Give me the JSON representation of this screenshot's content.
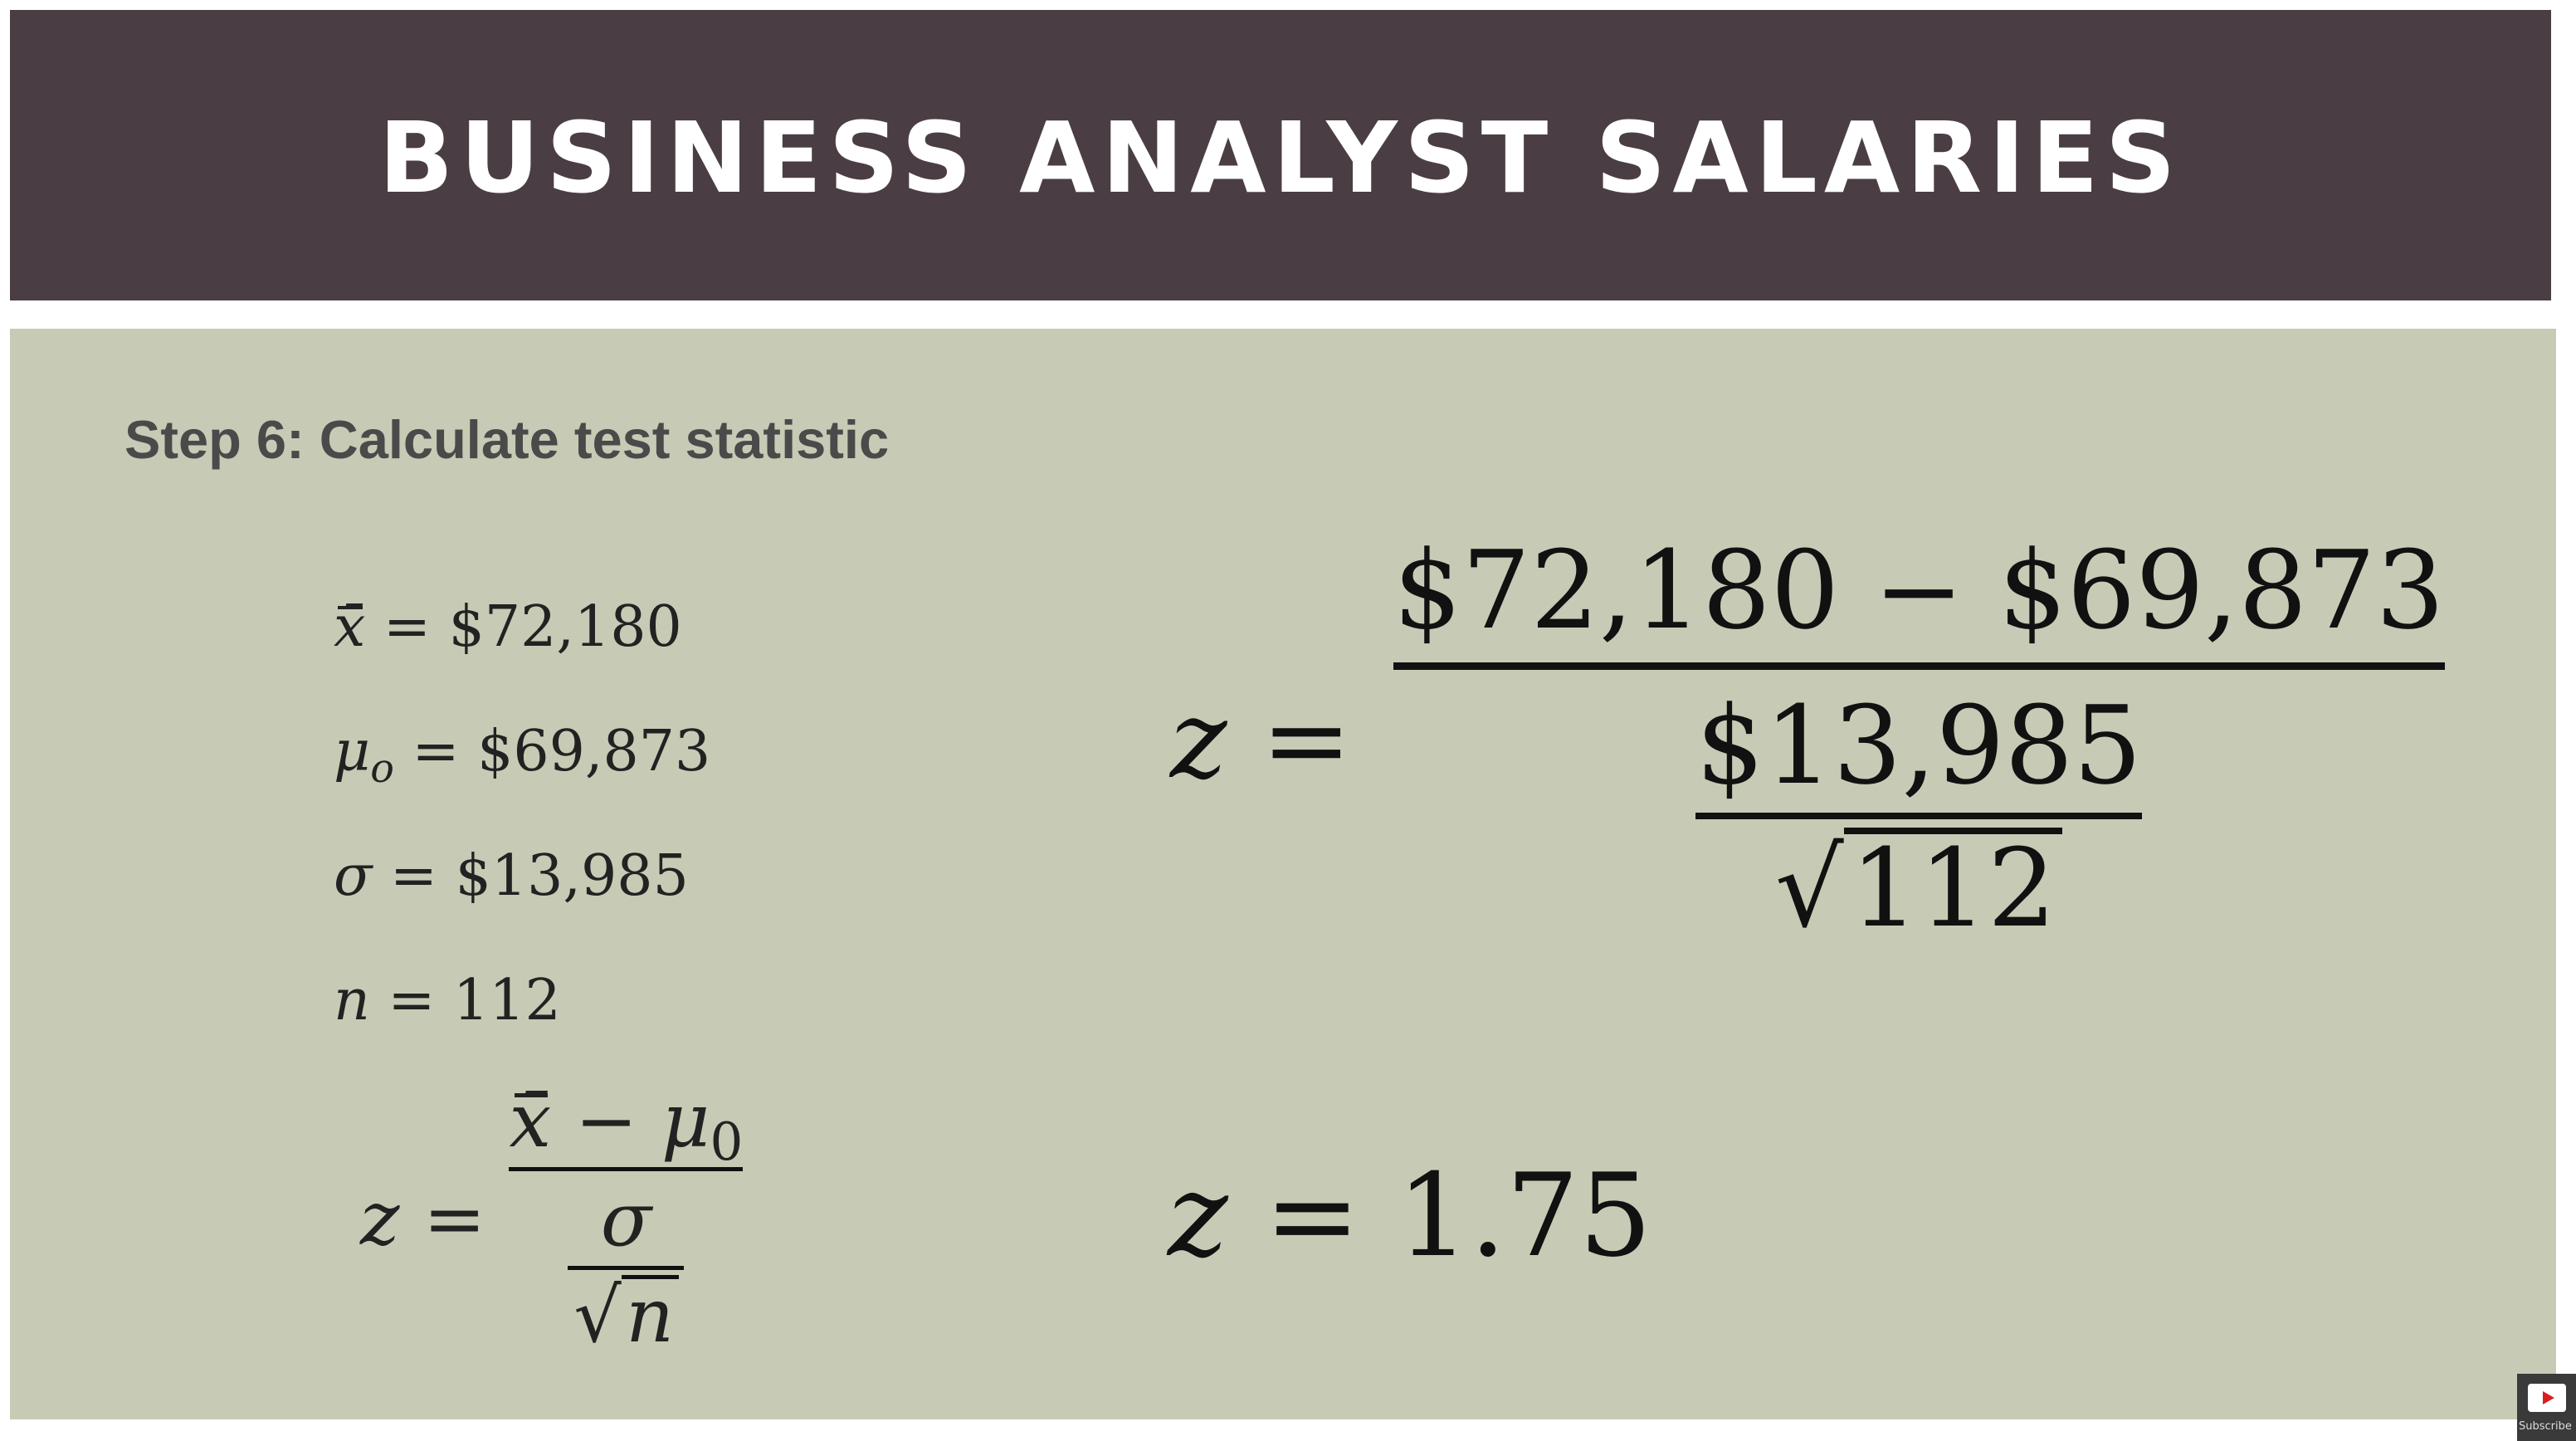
{
  "header": {
    "title": "BUSINESS ANALYST SALARIES"
  },
  "step": {
    "title": "Step 6: Calculate test statistic"
  },
  "given": [
    {
      "symbol": "x̄",
      "subscript": "",
      "value": "$72,180"
    },
    {
      "symbol": "μ",
      "subscript": "o",
      "value": "$69,873"
    },
    {
      "symbol": "σ",
      "subscript": "",
      "value": "$13,985"
    },
    {
      "symbol": "n",
      "subscript": "",
      "value": "112"
    }
  ],
  "formula": {
    "lhs": "z",
    "mean": "x̄",
    "mu": "μ",
    "mu_sub": "0",
    "sigma": "σ",
    "n": "n"
  },
  "computation": {
    "lhs": "z",
    "numerator": "$72,180 − $69,873",
    "sigma": "$13,985",
    "n": "112"
  },
  "result": {
    "lhs": "z",
    "value": "1.75"
  },
  "youtube_badge": {
    "label": "Subscribe"
  }
}
